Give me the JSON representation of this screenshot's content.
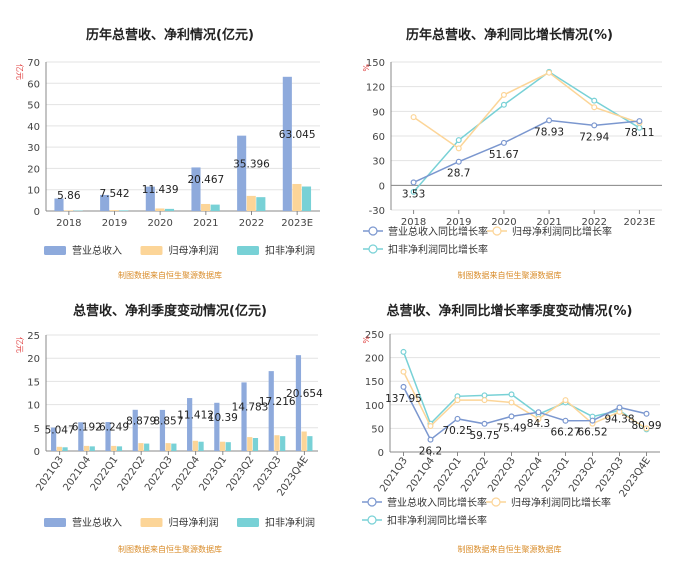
{
  "colors": {
    "revenue": "#8eaadc",
    "net_profit": "#fcd598",
    "deducted_profit": "#78d1d6",
    "revenue_growth": "#7b97cf",
    "axis": "#888888",
    "grid": "#e3e3e3",
    "unit": "#e04040",
    "source": "#d98c2a"
  },
  "source_text": "制图数据来自恒生聚源数据库",
  "charts": {
    "annual_amount": {
      "title": "历年总营收、净利情况(亿元)",
      "unit": "亿元",
      "chart_data": {
        "type": "bar",
        "categories": [
          "2018",
          "2019",
          "2020",
          "2021",
          "2022",
          "2023E"
        ],
        "ylim": [
          0,
          70
        ],
        "yticks": [
          0,
          10,
          20,
          30,
          40,
          50,
          60,
          70
        ],
        "series": [
          {
            "name": "营业总收入",
            "values": [
              5.86,
              7.542,
              11.439,
              20.467,
              35.396,
              63.045
            ],
            "labels": [
              "5.86",
              "7.542",
              "11.439",
              "20.467",
              "35.396",
              "63.045"
            ]
          },
          {
            "name": "归母净利润",
            "values": [
              0.3,
              0.4,
              1.2,
              3.3,
              7.1,
              12.7
            ]
          },
          {
            "name": "扣非净利润",
            "values": [
              0.2,
              0.3,
              1.0,
              3.0,
              6.5,
              11.5
            ]
          }
        ]
      }
    },
    "annual_growth": {
      "title": "历年总营收、净利同比增长情况(%)",
      "unit": "%",
      "chart_data": {
        "type": "line",
        "categories": [
          "2018",
          "2019",
          "2020",
          "2021",
          "2022",
          "2023E"
        ],
        "ylim": [
          -30,
          150
        ],
        "yticks": [
          -30,
          0,
          30,
          60,
          90,
          120,
          150
        ],
        "series": [
          {
            "name": "营业总收入同比增长率",
            "values": [
              3.53,
              28.7,
              51.67,
              78.93,
              72.94,
              78.11
            ],
            "labels": [
              "3.53",
              "28.7",
              "51.67",
              "78.93",
              "72.94",
              "78.11"
            ]
          },
          {
            "name": "归母净利润同比增长率",
            "values": [
              83,
              45,
              110,
              137,
              95,
              76
            ]
          },
          {
            "name": "扣非净利润同比增长率",
            "values": [
              -8,
              55,
              98,
              138,
              103,
              70
            ]
          }
        ]
      }
    },
    "quarter_amount": {
      "title": "总营收、净利季度变动情况(亿元)",
      "unit": "亿元",
      "chart_data": {
        "type": "bar",
        "categories": [
          "2021Q3",
          "2021Q4",
          "2022Q1",
          "2022Q2",
          "2022Q3",
          "2022Q4",
          "2023Q1",
          "2023Q2",
          "2023Q3",
          "2023Q4E"
        ],
        "ylim": [
          0,
          25
        ],
        "yticks": [
          0,
          5,
          10,
          15,
          20,
          25
        ],
        "series": [
          {
            "name": "营业总收入",
            "values": [
              5.047,
              6.192,
              6.249,
              8.879,
              8.857,
              11.412,
              10.39,
              14.783,
              17.216,
              20.654
            ],
            "labels": [
              "5.047",
              "6.192",
              "6.249",
              "8.879",
              "8.857",
              "11.412",
              "10.39",
              "14.783",
              "17.216",
              "20.654"
            ]
          },
          {
            "name": "归母净利润",
            "values": [
              0.9,
              1.1,
              1.1,
              1.7,
              1.7,
              2.2,
              2.0,
              3.0,
              3.4,
              4.2
            ]
          },
          {
            "name": "扣非净利润",
            "values": [
              0.8,
              1.0,
              1.0,
              1.6,
              1.6,
              2.0,
              1.9,
              2.8,
              3.2,
              3.2
            ]
          }
        ]
      }
    },
    "quarter_growth": {
      "title": "总营收、净利同比增长率季度变动情况(%)",
      "unit": "%",
      "chart_data": {
        "type": "line",
        "categories": [
          "2021Q3",
          "2021Q4",
          "2022Q1",
          "2022Q2",
          "2022Q3",
          "2022Q4",
          "2023Q1",
          "2023Q2",
          "2023Q3",
          "2023Q4E"
        ],
        "ylim": [
          0,
          250
        ],
        "yticks": [
          0,
          50,
          100,
          150,
          200,
          250
        ],
        "series": [
          {
            "name": "营业总收入同比增长率",
            "values": [
              137.95,
              26.2,
              70.25,
              59.75,
              75.49,
              84.3,
              66.27,
              66.52,
              94.38,
              80.99
            ],
            "labels": [
              "137.95",
              "26.2",
              "70.25",
              "59.75",
              "75.49",
              "84.3",
              "66.27",
              "66.52",
              "94.38",
              "80.99"
            ]
          },
          {
            "name": "归母净利润同比增长率",
            "values": [
              170,
              55,
              110,
              110,
              105,
              70,
              110,
              60,
              85,
              50
            ]
          },
          {
            "name": "扣非净利润同比增长率",
            "values": [
              212,
              60,
              118,
              120,
              122,
              80,
              105,
              75,
              88,
              48
            ]
          }
        ]
      }
    }
  }
}
